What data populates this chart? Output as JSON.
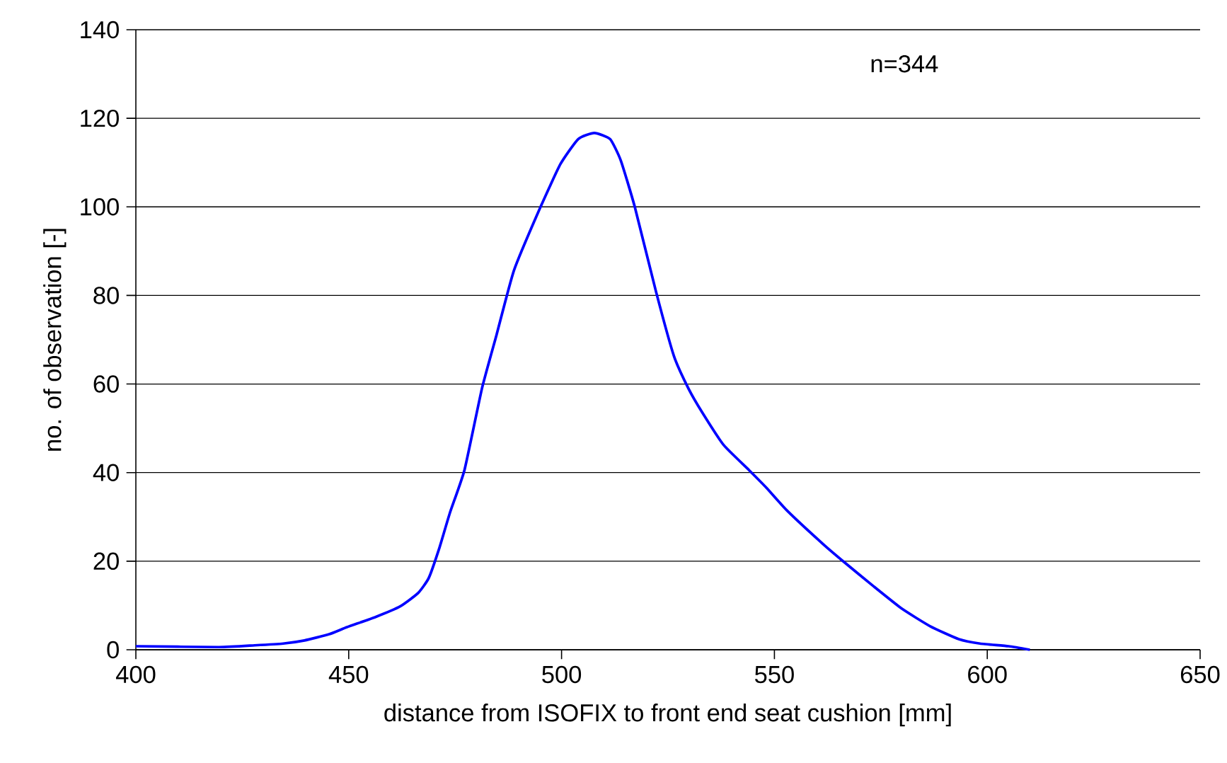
{
  "chart_data": {
    "type": "line",
    "xlabel": "distance from ISOFIX to front end seat cushion [mm]",
    "ylabel": "no. of observation [-]",
    "annotations": [
      "n=344"
    ],
    "xlim": [
      400,
      650
    ],
    "xticks": [
      400,
      450,
      500,
      550,
      600,
      650
    ],
    "ylim": [
      0,
      140
    ],
    "yticks": [
      0,
      20,
      40,
      60,
      80,
      100,
      120,
      140
    ],
    "grid": "y",
    "marker": "none",
    "line_style": "solid",
    "series": [
      {
        "color": "#0000ff",
        "x": [
          400,
          419.5,
          427.9,
          434.6,
          439.6,
          445.4,
          449.6,
          456.3,
          462.1,
          466.3,
          468.8,
          471.3,
          473.8,
          477.2,
          481.3,
          484.7,
          488.8,
          494.7,
          499.7,
          503.9,
          507.7,
          511.4,
          513.9,
          517.2,
          522.2,
          526.4,
          529.8,
          533.1,
          538.1,
          544,
          548.1,
          553.1,
          561.5,
          566.5,
          573.2,
          579.9,
          586.6,
          593.3,
          598.3,
          605,
          610
        ],
        "values": [
          0.8,
          0.6,
          1,
          1.4,
          2.1,
          3.5,
          5.1,
          7.4,
          9.8,
          12.8,
          16.2,
          23,
          31,
          40.6,
          59,
          71,
          85.6,
          99.2,
          109.6,
          115.3,
          116.7,
          115.3,
          110.5,
          100,
          80.8,
          66.3,
          59,
          53.5,
          46.2,
          40.6,
          36.6,
          31.3,
          23.8,
          19.7,
          14.4,
          9.3,
          5.3,
          2.4,
          1.4,
          0.8,
          0
        ]
      }
    ]
  }
}
